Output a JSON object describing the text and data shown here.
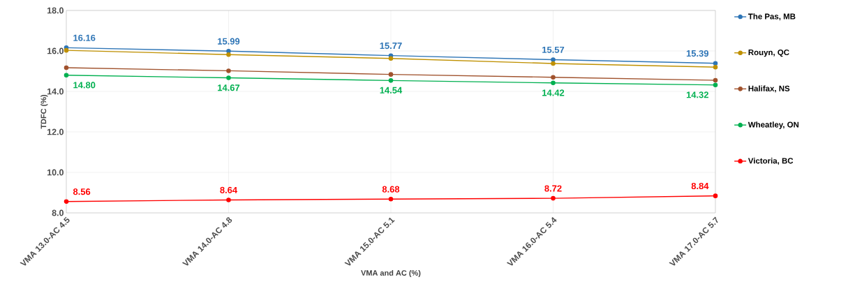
{
  "chart_data": {
    "type": "line",
    "xlabel": "VMA and AC (%)",
    "ylabel": "TDFC (%)",
    "categories": [
      "VMA 13.0-AC 4.5",
      "VMA 14.0-AC 4.8",
      "VMA 15.0-AC 5.1",
      "VMA 16.0-AC 5.4",
      "VMA 17.0-AC 5.7"
    ],
    "series": [
      {
        "name": "The Pas, MB",
        "color": "#2e75b6",
        "values": [
          16.16,
          15.99,
          15.77,
          15.57,
          15.39
        ],
        "value_labels": [
          "16.16",
          "15.99",
          "15.77",
          "15.57",
          "15.39"
        ]
      },
      {
        "name": "Rouyn, QC",
        "color": "#bf9000",
        "values": [
          16.03,
          15.82,
          15.63,
          15.38,
          15.2
        ]
      },
      {
        "name": "Halifax, NS",
        "color": "#a0522d",
        "values": [
          15.17,
          15.02,
          14.84,
          14.7,
          14.55
        ]
      },
      {
        "name": "Wheatley, ON",
        "color": "#00b050",
        "values": [
          14.8,
          14.67,
          14.54,
          14.42,
          14.32
        ],
        "value_labels": [
          "14.80",
          "14.67",
          "14.54",
          "14.42",
          "14.32"
        ]
      },
      {
        "name": "Victoria, BC",
        "color": "#ff0000",
        "values": [
          8.56,
          8.64,
          8.68,
          8.72,
          8.84
        ],
        "value_labels": [
          "8.56",
          "8.64",
          "8.68",
          "8.72",
          "8.84"
        ]
      }
    ],
    "ylim": [
      8,
      18
    ],
    "yticks": [
      {
        "value": 8,
        "label": "8.0"
      },
      {
        "value": 10,
        "label": "10.0"
      },
      {
        "value": 12,
        "label": "12.0"
      },
      {
        "value": 14,
        "label": "14.0"
      },
      {
        "value": 16,
        "label": "16.0"
      },
      {
        "value": 18,
        "label": "18.0"
      }
    ],
    "grid": true,
    "legend": "right",
    "marker": "circle",
    "line_style": "solid"
  }
}
